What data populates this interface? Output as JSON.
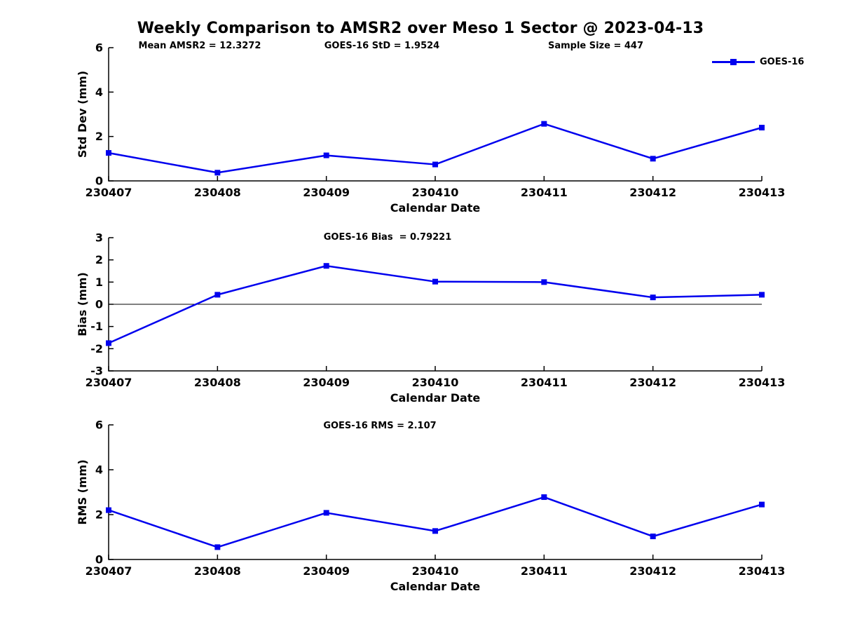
{
  "figure": {
    "title": "Weekly Comparison to AMSR2 over Meso 1 Sector @ 2023-04-13"
  },
  "legend": {
    "label": "GOES-16",
    "position": "top-right"
  },
  "colors": {
    "line": "#0000ee",
    "axis": "#000000",
    "text": "#000000",
    "background": "#ffffff"
  },
  "chart_data": [
    {
      "type": "line",
      "ylabel": "Std Dev (mm)",
      "xlabel": "Calendar Date",
      "categories": [
        "230407",
        "230408",
        "230409",
        "230410",
        "230411",
        "230412",
        "230413"
      ],
      "series": [
        {
          "name": "GOES-16",
          "values": [
            1.26,
            0.37,
            1.15,
            0.74,
            2.57,
            1.0,
            2.4
          ]
        }
      ],
      "ylim": [
        0,
        6
      ],
      "yticks": [
        0,
        2,
        4,
        6
      ],
      "grid": false,
      "zero_line": false,
      "annotations": [
        "Mean AMSR2 = 12.3272",
        "GOES-16 StD = 1.9524",
        "Sample Size = 447"
      ]
    },
    {
      "type": "line",
      "title": "GOES-16 Bias  = 0.79221",
      "ylabel": "Bias (mm)",
      "xlabel": "Calendar Date",
      "categories": [
        "230407",
        "230408",
        "230409",
        "230410",
        "230411",
        "230412",
        "230413"
      ],
      "series": [
        {
          "name": "GOES-16",
          "values": [
            -1.75,
            0.43,
            1.73,
            1.02,
            1.0,
            0.31,
            0.43
          ]
        }
      ],
      "ylim": [
        -3,
        3
      ],
      "yticks": [
        -3,
        -2,
        -1,
        0,
        1,
        2,
        3
      ],
      "grid": false,
      "zero_line": true
    },
    {
      "type": "line",
      "title": "GOES-16 RMS = 2.107",
      "ylabel": "RMS (mm)",
      "xlabel": "Calendar Date",
      "categories": [
        "230407",
        "230408",
        "230409",
        "230410",
        "230411",
        "230412",
        "230413"
      ],
      "series": [
        {
          "name": "GOES-16",
          "values": [
            2.2,
            0.55,
            2.08,
            1.27,
            2.78,
            1.03,
            2.45
          ]
        }
      ],
      "ylim": [
        0,
        6
      ],
      "yticks": [
        0,
        2,
        4,
        6
      ],
      "grid": false,
      "zero_line": false
    }
  ]
}
